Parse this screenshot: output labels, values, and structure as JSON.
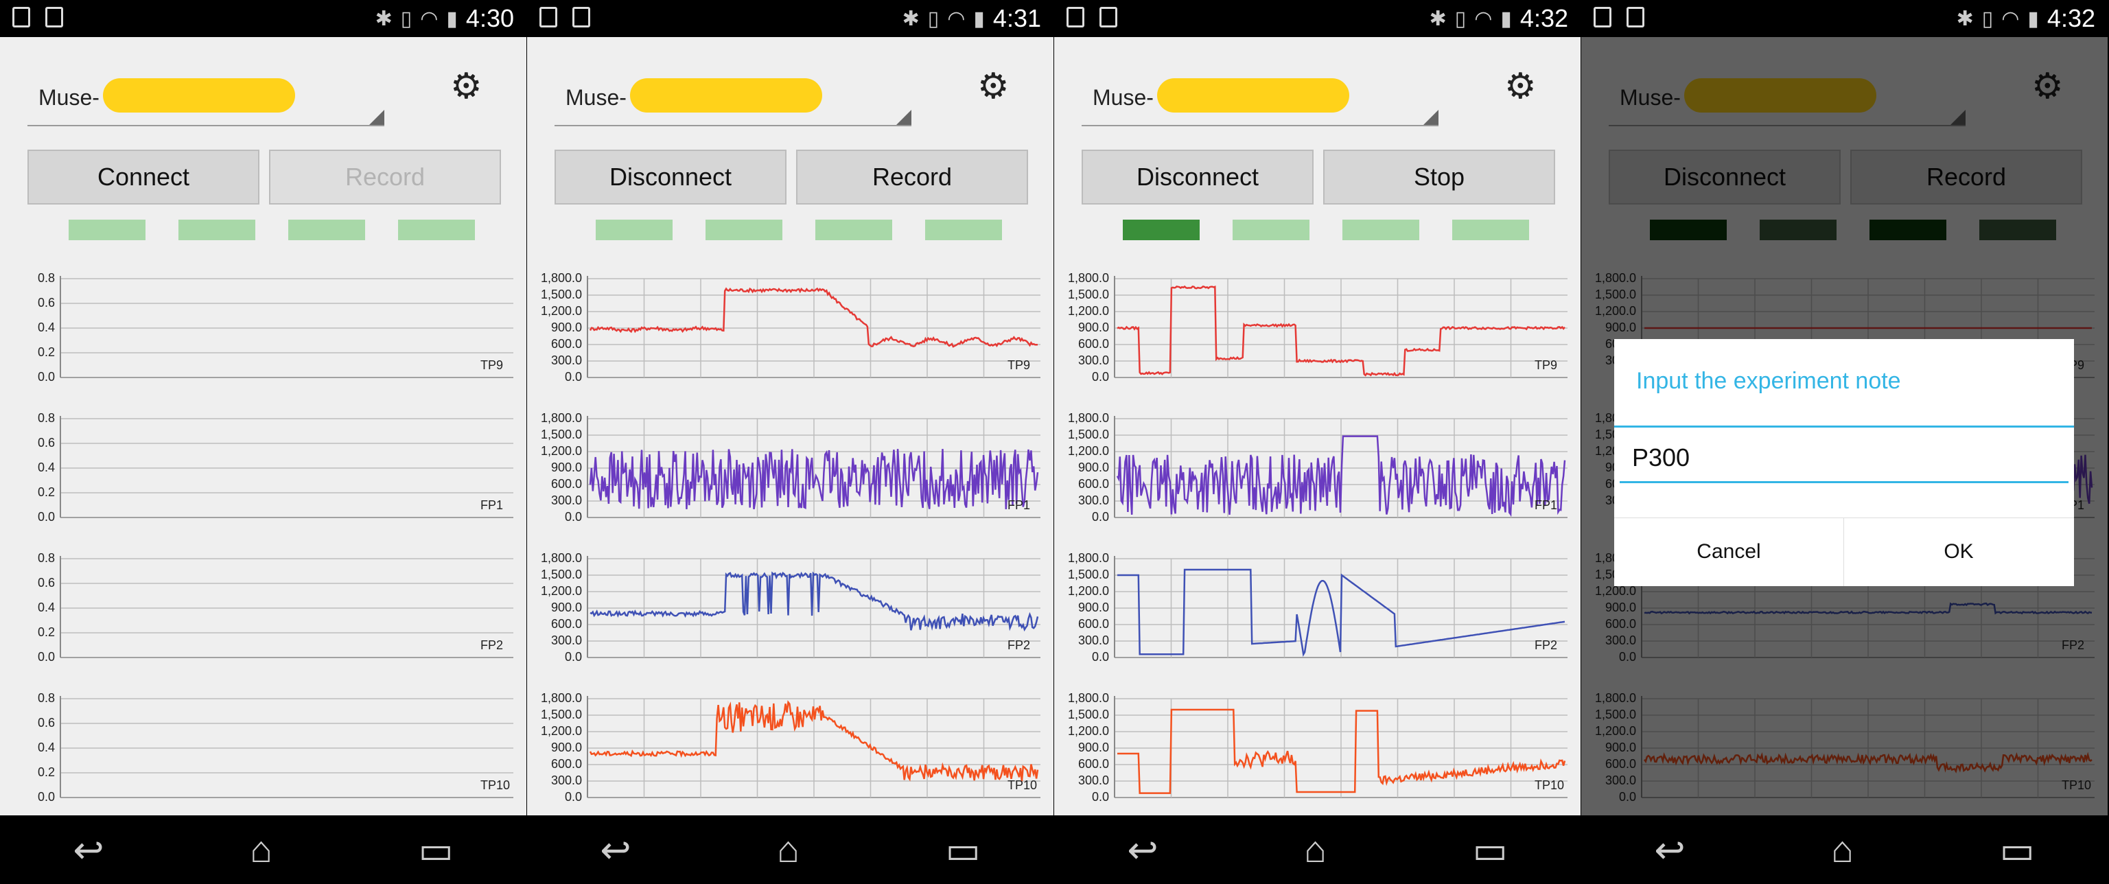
{
  "screens": [
    {
      "time": "4:30",
      "device": {
        "label": "Muse-"
      },
      "left_button": "Connect",
      "right_button": "Record",
      "right_disabled": true,
      "indicators": [
        "#a8d8a8",
        "#a8d8a8",
        "#a8d8a8",
        "#a8d8a8"
      ],
      "mode": "empty",
      "charts": [
        {
          "name": "TP9",
          "ticks": [
            "0.8",
            "0.6",
            "0.4",
            "0.2",
            "0.0"
          ],
          "color": "#ffffff"
        },
        {
          "name": "FP1",
          "ticks": [
            "0.8",
            "0.6",
            "0.4",
            "0.2",
            "0.0"
          ],
          "color": "#ffffff"
        },
        {
          "name": "FP2",
          "ticks": [
            "0.8",
            "0.6",
            "0.4",
            "0.2",
            "0.0"
          ],
          "color": "#ffffff"
        },
        {
          "name": "TP10",
          "ticks": [
            "0.8",
            "0.6",
            "0.4",
            "0.2",
            "0.0"
          ],
          "color": "#ffffff"
        }
      ]
    },
    {
      "time": "4:31",
      "device": {
        "label": "Muse-"
      },
      "left_button": "Disconnect",
      "right_button": "Record",
      "right_disabled": false,
      "indicators": [
        "#a8d8a8",
        "#a8d8a8",
        "#a8d8a8",
        "#a8d8a8"
      ],
      "mode": "data",
      "charts": [
        {
          "name": "TP9",
          "ticks": [
            "1,800.0",
            "1,500.0",
            "1,200.0",
            "900.0",
            "600.0",
            "300.0",
            "0.0"
          ],
          "color": "#e53935"
        },
        {
          "name": "FP1",
          "ticks": [
            "1,800.0",
            "1,500.0",
            "1,200.0",
            "900.0",
            "600.0",
            "300.0",
            "0.0"
          ],
          "color": "#6a3bc1"
        },
        {
          "name": "FP2",
          "ticks": [
            "1,800.0",
            "1,500.0",
            "1,200.0",
            "900.0",
            "600.0",
            "300.0",
            "0.0"
          ],
          "color": "#3f51b5"
        },
        {
          "name": "TP10",
          "ticks": [
            "1,800.0",
            "1,500.0",
            "1,200.0",
            "900.0",
            "600.0",
            "300.0",
            "0.0"
          ],
          "color": "#f4511e"
        }
      ]
    },
    {
      "time": "4:32",
      "device": {
        "label": "Muse-"
      },
      "left_button": "Disconnect",
      "right_button": "Stop",
      "right_disabled": false,
      "indicators": [
        "#3a8f3a",
        "#a8d8a8",
        "#a8d8a8",
        "#a8d8a8"
      ],
      "mode": "data",
      "charts": [
        {
          "name": "TP9",
          "ticks": [
            "1,800.0",
            "1,500.0",
            "1,200.0",
            "900.0",
            "600.0",
            "300.0",
            "0.0"
          ],
          "color": "#e53935"
        },
        {
          "name": "FP1",
          "ticks": [
            "1,800.0",
            "1,500.0",
            "1,200.0",
            "900.0",
            "600.0",
            "300.0",
            "0.0"
          ],
          "color": "#6a3bc1"
        },
        {
          "name": "FP2",
          "ticks": [
            "1,800.0",
            "1,500.0",
            "1,200.0",
            "900.0",
            "600.0",
            "300.0",
            "0.0"
          ],
          "color": "#3f51b5"
        },
        {
          "name": "TP10",
          "ticks": [
            "1,800.0",
            "1,500.0",
            "1,200.0",
            "900.0",
            "600.0",
            "300.0",
            "0.0"
          ],
          "color": "#f4511e"
        }
      ]
    },
    {
      "time": "4:32",
      "device": {
        "label": "Muse-"
      },
      "left_button": "Disconnect",
      "right_button": "Record",
      "right_disabled": false,
      "indicators": [
        "#0b3a0b",
        "#3d5a3d",
        "#0b3a0b",
        "#3d5a3d"
      ],
      "mode": "data-dim",
      "charts": [
        {
          "name": "TP9",
          "ticks": [
            "1,800.0",
            "1,500.0",
            "1,200.0",
            "900.0",
            "600.0",
            "300.0",
            "0.0"
          ],
          "color": "#e53935"
        },
        {
          "name": "FP1",
          "ticks": [
            "1,800.0",
            "1,500.0",
            "1,200.0",
            "900.0",
            "600.0",
            "300.0",
            "0.0"
          ],
          "color": "#6a3bc1"
        },
        {
          "name": "FP2",
          "ticks": [
            "1,800.0",
            "1,500.0",
            "1,200.0",
            "900.0",
            "600.0",
            "300.0",
            "0.0"
          ],
          "color": "#3f51b5"
        },
        {
          "name": "TP10",
          "ticks": [
            "1,800.0",
            "1,500.0",
            "1,200.0",
            "900.0",
            "600.0",
            "300.0",
            "0.0"
          ],
          "color": "#f4511e"
        }
      ],
      "dialog": {
        "title": "Input the experiment note",
        "value": "P300",
        "cancel": "Cancel",
        "ok": "OK"
      }
    }
  ]
}
